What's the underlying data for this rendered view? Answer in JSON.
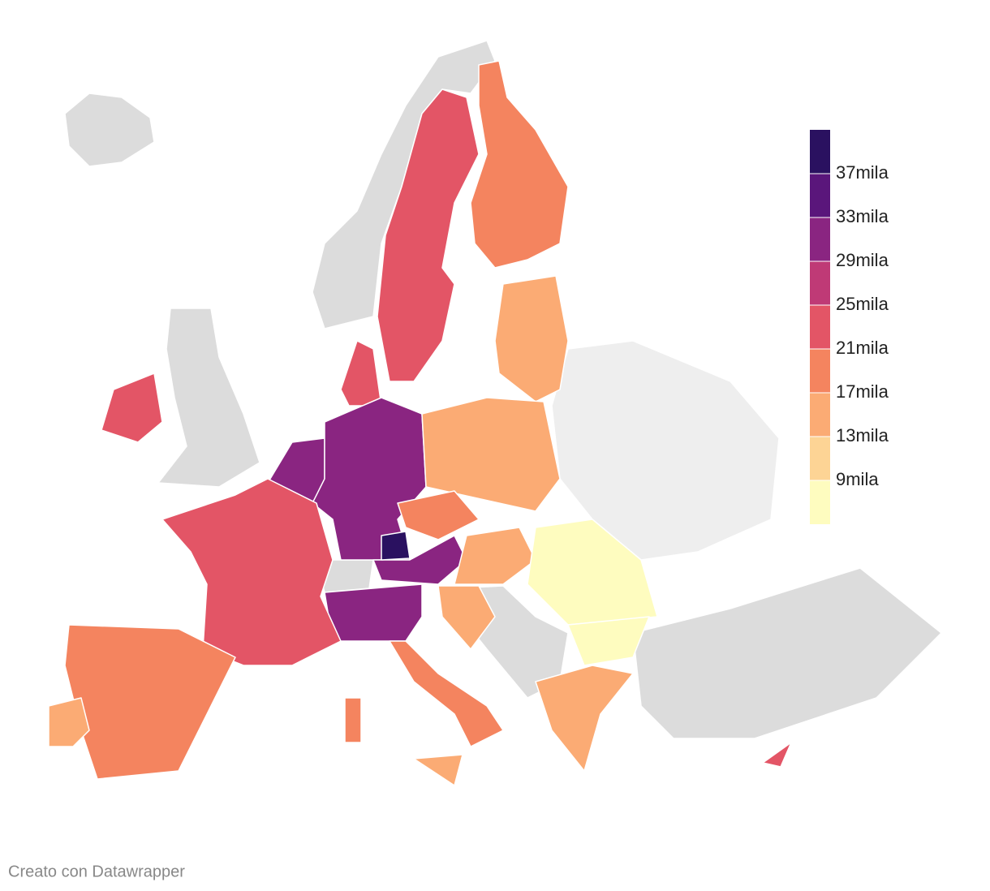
{
  "map": {
    "legend": {
      "colors": [
        "#fefcbf",
        "#fdd495",
        "#fbab74",
        "#f4845f",
        "#e35566",
        "#bf3a76",
        "#8a2581",
        "#5a167b",
        "#2a1160"
      ],
      "ticks": [
        {
          "value": 9000,
          "label": "9mila"
        },
        {
          "value": 13000,
          "label": "13mila"
        },
        {
          "value": 17000,
          "label": "17mila"
        },
        {
          "value": 21000,
          "label": "21mila"
        },
        {
          "value": 25000,
          "label": "25mila"
        },
        {
          "value": 29000,
          "label": "29mila"
        },
        {
          "value": 33000,
          "label": "33mila"
        },
        {
          "value": 37000,
          "label": "37mila"
        }
      ]
    },
    "regions": [
      {
        "value": 22000
      },
      {
        "value": 18000
      },
      {
        "value": 14000
      },
      {
        "value": 22000
      },
      {
        "value": 22000
      },
      {
        "value": 30000
      },
      {
        "value": 31000
      },
      {
        "value": 15000
      },
      {
        "value": 19000
      },
      {
        "value": 30000
      },
      {
        "value": 14000
      },
      {
        "value": 8000
      },
      {
        "value": 8000
      },
      {
        "value": 13500
      },
      {
        "value": 29500
      },
      {
        "value": 17500
      },
      {
        "value": 14000
      },
      {
        "value": 18000
      },
      {
        "value": 22000
      },
      {
        "value": 18000
      },
      {
        "value": 14000
      },
      {
        "value": 22000
      },
      {
        "value": 14000
      },
      {
        "value": 38000
      }
    ],
    "credit": "Creato con Datawrapper"
  }
}
